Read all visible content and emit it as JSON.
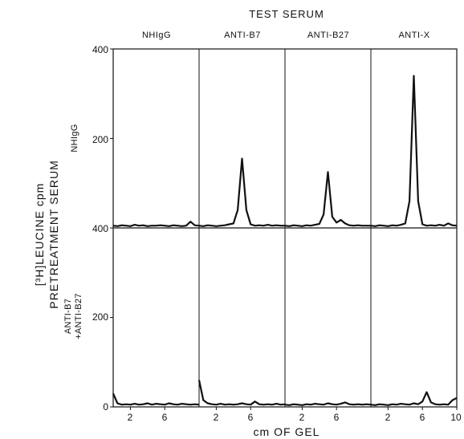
{
  "title": "TEST SERUM",
  "y_axis_label_line1": "[³H]LEUCINE cpm",
  "y_axis_label_line2": "PRETREATMENT SERUM",
  "x_axis_label": "cm OF GEL",
  "columns": [
    "NHIgG",
    "ANTI-B7",
    "ANTI-B27",
    "ANTI-X"
  ],
  "rows": [
    "NHIgG",
    "ANTI-B7 +ANTI-B27"
  ],
  "y_ticks_top": [
    "400",
    "200",
    "400"
  ],
  "y_ticks_bottom": [
    "200",
    "0"
  ],
  "x_ticks": [
    "2",
    "6",
    "2",
    "6",
    "2",
    "6",
    "2",
    "6",
    "10"
  ],
  "chart_data": {
    "type": "line",
    "title": "TEST SERUM",
    "xlabel": "cm OF GEL",
    "ylabel": "[³H]LEUCINE cpm",
    "ylim": [
      0,
      400
    ],
    "xlim": [
      0,
      10
    ],
    "grid": false,
    "x": [
      0,
      0.5,
      1,
      1.5,
      2,
      2.5,
      3,
      3.5,
      4,
      4.5,
      5,
      5.5,
      6,
      6.5,
      7,
      7.5,
      8,
      8.5,
      9,
      9.5,
      10
    ],
    "panels": [
      {
        "row": "NHIgG",
        "column": "NHIgG",
        "values": [
          5,
          4,
          6,
          5,
          4,
          7,
          5,
          6,
          4,
          5,
          5,
          6,
          5,
          4,
          6,
          5,
          4,
          5,
          14,
          6,
          5
        ]
      },
      {
        "row": "NHIgG",
        "column": "ANTI-B7",
        "values": [
          5,
          4,
          6,
          5,
          4,
          5,
          6,
          8,
          10,
          40,
          155,
          40,
          8,
          5,
          6,
          5,
          7,
          5,
          6,
          5,
          5
        ]
      },
      {
        "row": "NHIgG",
        "column": "ANTI-B27",
        "values": [
          5,
          4,
          6,
          5,
          4,
          6,
          5,
          7,
          9,
          30,
          125,
          25,
          12,
          18,
          10,
          6,
          5,
          6,
          5,
          5,
          5
        ]
      },
      {
        "row": "NHIgG",
        "column": "ANTI-X",
        "values": [
          5,
          4,
          6,
          5,
          4,
          6,
          5,
          7,
          10,
          60,
          340,
          60,
          8,
          5,
          6,
          5,
          7,
          5,
          10,
          6,
          5
        ]
      },
      {
        "row": "ANTI-B7 +ANTI-B27",
        "column": "NHIgG",
        "values": [
          30,
          8,
          5,
          6,
          5,
          7,
          5,
          6,
          8,
          5,
          7,
          6,
          5,
          8,
          6,
          5,
          7,
          6,
          5,
          6,
          5
        ]
      },
      {
        "row": "ANTI-B7 +ANTI-B27",
        "column": "ANTI-B7",
        "values": [
          60,
          15,
          8,
          6,
          5,
          7,
          5,
          6,
          5,
          6,
          8,
          6,
          5,
          12,
          6,
          5,
          6,
          5,
          7,
          5,
          6
        ]
      },
      {
        "row": "ANTI-B7 +ANTI-B27",
        "column": "ANTI-B27",
        "values": [
          5,
          4,
          6,
          5,
          4,
          6,
          5,
          7,
          6,
          5,
          8,
          6,
          5,
          7,
          10,
          6,
          5,
          6,
          5,
          6,
          5
        ]
      },
      {
        "row": "ANTI-B7 +ANTI-B27",
        "column": "ANTI-X",
        "values": [
          5,
          4,
          6,
          5,
          4,
          6,
          5,
          7,
          6,
          5,
          8,
          6,
          12,
          33,
          10,
          6,
          5,
          6,
          5,
          15,
          20
        ]
      }
    ]
  }
}
